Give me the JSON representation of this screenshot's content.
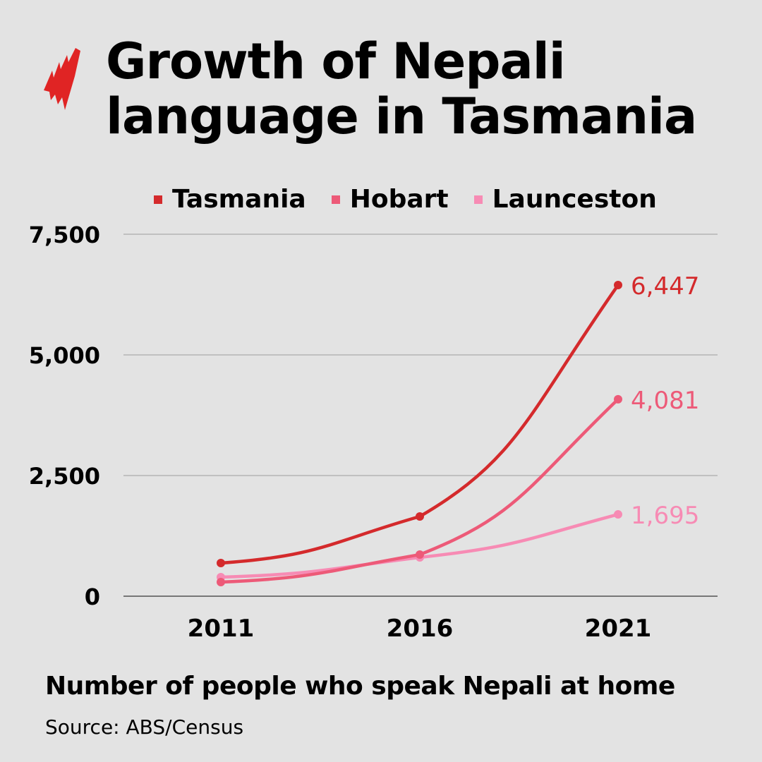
{
  "header": {
    "title_line1": "Growth of Nepali",
    "title_line2": "language in Tasmania",
    "logo": "sbs-logo-icon"
  },
  "legend": [
    {
      "label": "Tasmania",
      "color": "#d42a2c"
    },
    {
      "label": "Hobart",
      "color": "#ed5a78"
    },
    {
      "label": "Launceston",
      "color": "#f78bb4"
    }
  ],
  "footer": {
    "caption": "Number of people who speak Nepali at home",
    "source": "Source: ABS/Census"
  },
  "chart_data": {
    "type": "line",
    "title": "Growth of Nepali language in Tasmania",
    "subtitle": "Number of people who speak Nepali at home",
    "xlabel": "",
    "ylabel": "",
    "categories": [
      "2011",
      "2016",
      "2021"
    ],
    "y_ticks": [
      "0",
      "2,500",
      "5,000",
      "7,500"
    ],
    "ylim": [
      0,
      7500
    ],
    "grid": true,
    "legend_position": "top",
    "series": [
      {
        "name": "Tasmania",
        "color": "#d42a2c",
        "values": [
          687,
          1652,
          6447
        ],
        "end_label": "6,447"
      },
      {
        "name": "Hobart",
        "color": "#ed5a78",
        "values": [
          292,
          862,
          4081
        ],
        "end_label": "4,081"
      },
      {
        "name": "Launceston",
        "color": "#f78bb4",
        "values": [
          395,
          804,
          1695
        ],
        "end_label": "1,695"
      }
    ],
    "source": "Source: ABS/Census"
  }
}
